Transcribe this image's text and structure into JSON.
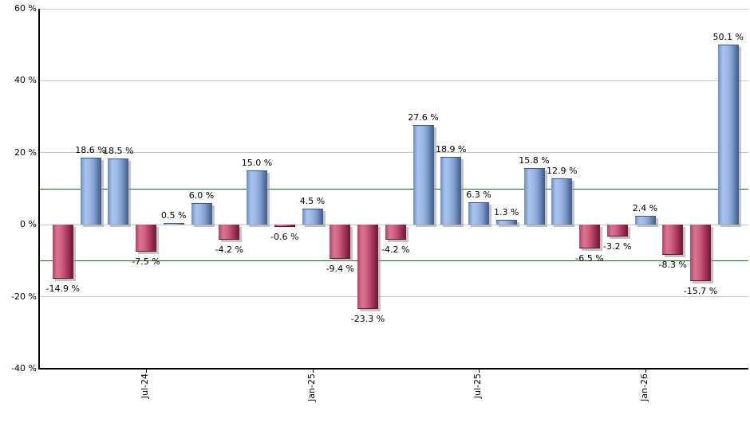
{
  "chart_data": {
    "type": "bar",
    "title": "",
    "unit": "%",
    "values": [
      -14.9,
      18.6,
      18.5,
      -7.5,
      0.5,
      6.0,
      -4.2,
      15.0,
      -0.6,
      4.5,
      -9.4,
      -23.3,
      -4.2,
      27.6,
      18.9,
      6.3,
      1.3,
      15.8,
      12.9,
      -6.5,
      -3.2,
      2.4,
      -8.3,
      -15.7,
      50.1
    ],
    "bar_labels": [
      "-14.9 %",
      "18.6 %",
      "18.5 %",
      "-7.5 %",
      "0.5 %",
      "6.0 %",
      "-4.2 %",
      "15.0 %",
      "-0.6 %",
      "4.5 %",
      "-9.4 %",
      "-23.3 %",
      "-4.2 %",
      "27.6 %",
      "18.9 %",
      "6.3 %",
      "1.3 %",
      "15.8 %",
      "12.9 %",
      "-6.5 %",
      "-3.2 %",
      "2.4 %",
      "-8.3 %",
      "-15.7 %",
      "50.1 %"
    ],
    "x_axis": {
      "tick_labels": [
        "Jul-24",
        "Jan-25",
        "Jul-25",
        "Jan-26"
      ],
      "tick_bar_indices": [
        3,
        9,
        15,
        21
      ]
    },
    "y_axis": {
      "ylim": [
        -40,
        60
      ],
      "tick_values": [
        60,
        40,
        20,
        0,
        -20,
        -40
      ],
      "tick_labels": [
        "60 %",
        "40 %",
        "20 %",
        "0 %",
        "-20 %",
        "-40 %"
      ]
    },
    "gridlines": {
      "gray_values": [
        60,
        40,
        20,
        0,
        -20
      ],
      "green_values": [
        10,
        -10
      ],
      "grid_on": true
    },
    "legend": "none",
    "colors": {
      "background": "#ffffff",
      "grid": "#c6c6c6",
      "reference_line": "#007d00",
      "axis": "#000000",
      "label_text": "#000000",
      "shadow": "rgba(148,148,148,0.55)",
      "positive_bar_stops": [
        "#6d8cc4",
        "#a9c4ec",
        "#9cb8e4",
        "#7d9bce",
        "#54719f",
        "#415d89"
      ],
      "negative_bar_stops": [
        "#b04466",
        "#d9768f",
        "#ce5f7e",
        "#ae3a5f",
        "#832345",
        "#6d1b38"
      ]
    }
  }
}
